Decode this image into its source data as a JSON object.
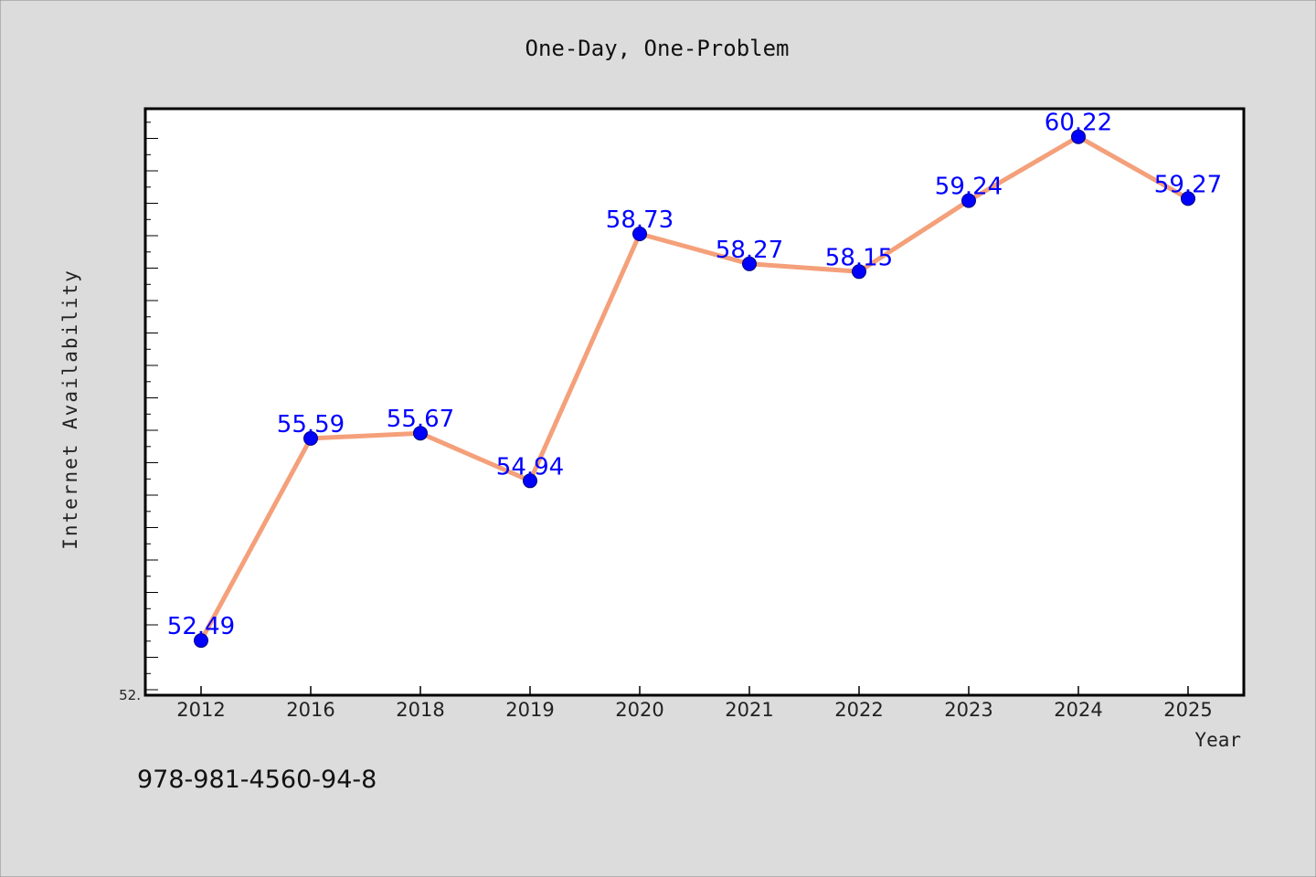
{
  "chart_data": {
    "type": "line",
    "title": "One-Day, One-Problem",
    "xlabel": "Year",
    "ylabel": "Internet Availability",
    "categories": [
      "2012",
      "2016",
      "2018",
      "2019",
      "2020",
      "2021",
      "2022",
      "2023",
      "2024",
      "2025"
    ],
    "series": [
      {
        "values": [
          52.49,
          55.59,
          55.67,
          54.94,
          58.73,
          58.27,
          58.15,
          59.24,
          60.22,
          59.27
        ],
        "line_color": "#f4a07a",
        "marker_color": "#0000ff"
      }
    ],
    "data_labels": [
      "52.49",
      "55.59",
      "55.67",
      "54.94",
      "58.73",
      "58.27",
      "58.15",
      "59.24",
      "60.22",
      "59.27"
    ],
    "ylim": [
      51.65,
      60.65
    ],
    "y_tick_label": "52.",
    "grid": false,
    "label_color": "#0000ff"
  },
  "footer": {
    "isbn": "978-981-4560-94-8"
  }
}
